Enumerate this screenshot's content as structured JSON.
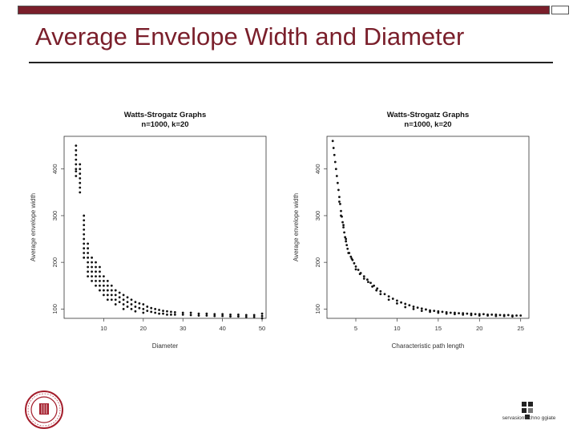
{
  "slide": {
    "title": "Average Envelope Width and Diameter",
    "accent_color": "#7a1f2b",
    "logo_right_text": "servasiontechno ggiate"
  },
  "chart_data": [
    {
      "type": "scatter",
      "title": "Watts-Strogatz Graphs",
      "subtitle": "n=1000, k=20",
      "xlabel": "Diameter",
      "ylabel": "Average envelope width",
      "xlim": [
        0,
        51
      ],
      "ylim": [
        80,
        470
      ],
      "xticks": [
        10,
        20,
        30,
        40,
        50
      ],
      "yticks": [
        100,
        200,
        300,
        400
      ],
      "points": [
        [
          3,
          450
        ],
        [
          3,
          440
        ],
        [
          3,
          430
        ],
        [
          3,
          420
        ],
        [
          3,
          410
        ],
        [
          3,
          400
        ],
        [
          3,
          395
        ],
        [
          3,
          385
        ],
        [
          4,
          410
        ],
        [
          4,
          400
        ],
        [
          4,
          390
        ],
        [
          4,
          380
        ],
        [
          4,
          370
        ],
        [
          4,
          360
        ],
        [
          4,
          350
        ],
        [
          5,
          300
        ],
        [
          5,
          290
        ],
        [
          5,
          280
        ],
        [
          5,
          270
        ],
        [
          5,
          260
        ],
        [
          5,
          250
        ],
        [
          5,
          240
        ],
        [
          5,
          230
        ],
        [
          5,
          220
        ],
        [
          5,
          210
        ],
        [
          6,
          240
        ],
        [
          6,
          230
        ],
        [
          6,
          220
        ],
        [
          6,
          210
        ],
        [
          6,
          200
        ],
        [
          6,
          190
        ],
        [
          6,
          180
        ],
        [
          6,
          170
        ],
        [
          7,
          210
        ],
        [
          7,
          200
        ],
        [
          7,
          190
        ],
        [
          7,
          180
        ],
        [
          7,
          170
        ],
        [
          7,
          160
        ],
        [
          8,
          200
        ],
        [
          8,
          190
        ],
        [
          8,
          180
        ],
        [
          8,
          170
        ],
        [
          8,
          160
        ],
        [
          8,
          150
        ],
        [
          9,
          190
        ],
        [
          9,
          180
        ],
        [
          9,
          170
        ],
        [
          9,
          160
        ],
        [
          9,
          150
        ],
        [
          9,
          140
        ],
        [
          10,
          170
        ],
        [
          10,
          160
        ],
        [
          10,
          150
        ],
        [
          10,
          140
        ],
        [
          10,
          130
        ],
        [
          11,
          160
        ],
        [
          11,
          150
        ],
        [
          11,
          140
        ],
        [
          11,
          130
        ],
        [
          11,
          120
        ],
        [
          12,
          150
        ],
        [
          12,
          140
        ],
        [
          12,
          130
        ],
        [
          12,
          120
        ],
        [
          13,
          140
        ],
        [
          13,
          130
        ],
        [
          13,
          120
        ],
        [
          13,
          110
        ],
        [
          14,
          135
        ],
        [
          14,
          125
        ],
        [
          14,
          115
        ],
        [
          15,
          130
        ],
        [
          15,
          120
        ],
        [
          15,
          110
        ],
        [
          15,
          100
        ],
        [
          16,
          125
        ],
        [
          16,
          115
        ],
        [
          16,
          105
        ],
        [
          17,
          120
        ],
        [
          17,
          110
        ],
        [
          17,
          100
        ],
        [
          18,
          115
        ],
        [
          18,
          105
        ],
        [
          18,
          95
        ],
        [
          19,
          112
        ],
        [
          19,
          102
        ],
        [
          20,
          110
        ],
        [
          20,
          100
        ],
        [
          20,
          92
        ],
        [
          21,
          105
        ],
        [
          21,
          96
        ],
        [
          22,
          102
        ],
        [
          22,
          94
        ],
        [
          23,
          100
        ],
        [
          23,
          92
        ],
        [
          24,
          98
        ],
        [
          24,
          90
        ],
        [
          25,
          96
        ],
        [
          25,
          90
        ],
        [
          26,
          95
        ],
        [
          26,
          88
        ],
        [
          27,
          94
        ],
        [
          27,
          88
        ],
        [
          28,
          93
        ],
        [
          28,
          88
        ],
        [
          30,
          92
        ],
        [
          30,
          88
        ],
        [
          32,
          92
        ],
        [
          32,
          87
        ],
        [
          34,
          90
        ],
        [
          34,
          86
        ],
        [
          36,
          90
        ],
        [
          36,
          86
        ],
        [
          38,
          89
        ],
        [
          38,
          85
        ],
        [
          40,
          89
        ],
        [
          40,
          85
        ],
        [
          42,
          88
        ],
        [
          42,
          84
        ],
        [
          44,
          88
        ],
        [
          44,
          84
        ],
        [
          46,
          87
        ],
        [
          46,
          83
        ],
        [
          48,
          87
        ],
        [
          48,
          83
        ],
        [
          50,
          90
        ],
        [
          50,
          85
        ],
        [
          50,
          80
        ]
      ]
    },
    {
      "type": "scatter",
      "title": "Watts-Strogatz Graphs",
      "subtitle": "n=1000, k=20",
      "xlabel": "Characteristic path length",
      "ylabel": "Average envelope width",
      "xlim": [
        1.5,
        26
      ],
      "ylim": [
        80,
        470
      ],
      "xticks": [
        5,
        10,
        15,
        20,
        25
      ],
      "yticks": [
        100,
        200,
        300,
        400
      ],
      "points": [
        [
          2.2,
          460
        ],
        [
          2.3,
          445
        ],
        [
          2.4,
          430
        ],
        [
          2.5,
          415
        ],
        [
          2.6,
          400
        ],
        [
          2.7,
          385
        ],
        [
          2.8,
          370
        ],
        [
          2.9,
          355
        ],
        [
          3.0,
          340
        ],
        [
          3.1,
          325
        ],
        [
          3.2,
          310
        ],
        [
          3.3,
          298
        ],
        [
          3.4,
          286
        ],
        [
          3.5,
          275
        ],
        [
          3.6,
          264
        ],
        [
          3.7,
          254
        ],
        [
          3.8,
          245
        ],
        [
          3.9,
          237
        ],
        [
          4.0,
          229
        ],
        [
          4.2,
          220
        ],
        [
          4.4,
          212
        ],
        [
          4.6,
          205
        ],
        [
          4.8,
          198
        ],
        [
          5.0,
          191
        ],
        [
          5.3,
          184
        ],
        [
          5.6,
          177
        ],
        [
          6.0,
          170
        ],
        [
          6.4,
          163
        ],
        [
          6.8,
          156
        ],
        [
          7.2,
          150
        ],
        [
          7.6,
          144
        ],
        [
          8.0,
          138
        ],
        [
          8.5,
          132
        ],
        [
          9.0,
          127
        ],
        [
          9.5,
          122
        ],
        [
          10.0,
          118
        ],
        [
          10.5,
          114
        ],
        [
          11.0,
          111
        ],
        [
          11.5,
          108
        ],
        [
          12.0,
          105
        ],
        [
          12.5,
          103
        ],
        [
          13.0,
          101
        ],
        [
          13.5,
          99
        ],
        [
          14.0,
          97
        ],
        [
          14.5,
          96
        ],
        [
          15.0,
          95
        ],
        [
          15.5,
          94
        ],
        [
          16.0,
          93
        ],
        [
          16.5,
          92
        ],
        [
          17.0,
          92
        ],
        [
          17.5,
          91
        ],
        [
          18.0,
          91
        ],
        [
          18.5,
          90
        ],
        [
          19.0,
          90
        ],
        [
          19.5,
          89
        ],
        [
          20.0,
          89
        ],
        [
          20.5,
          89
        ],
        [
          21.0,
          88
        ],
        [
          21.5,
          88
        ],
        [
          22.0,
          88
        ],
        [
          22.5,
          87
        ],
        [
          23.0,
          87
        ],
        [
          23.5,
          87
        ],
        [
          24.0,
          86
        ],
        [
          24.5,
          86
        ],
        [
          25.0,
          86
        ],
        [
          3.0,
          330
        ],
        [
          3.2,
          300
        ],
        [
          3.5,
          280
        ],
        [
          3.8,
          250
        ],
        [
          4.1,
          220
        ],
        [
          4.5,
          208
        ],
        [
          5.0,
          185
        ],
        [
          5.5,
          175
        ],
        [
          6.0,
          165
        ],
        [
          6.5,
          158
        ],
        [
          7.0,
          148
        ],
        [
          7.5,
          140
        ],
        [
          8.0,
          132
        ],
        [
          9.0,
          120
        ],
        [
          10.0,
          112
        ],
        [
          11.0,
          104
        ],
        [
          12.0,
          100
        ],
        [
          13.0,
          96
        ],
        [
          14.0,
          94
        ],
        [
          15.0,
          92
        ],
        [
          16.0,
          90
        ],
        [
          17.0,
          89
        ],
        [
          18.0,
          88
        ],
        [
          19.0,
          87
        ],
        [
          20.0,
          86
        ],
        [
          21.0,
          86
        ],
        [
          22.0,
          85
        ],
        [
          23.0,
          85
        ],
        [
          24.0,
          84
        ]
      ]
    }
  ]
}
